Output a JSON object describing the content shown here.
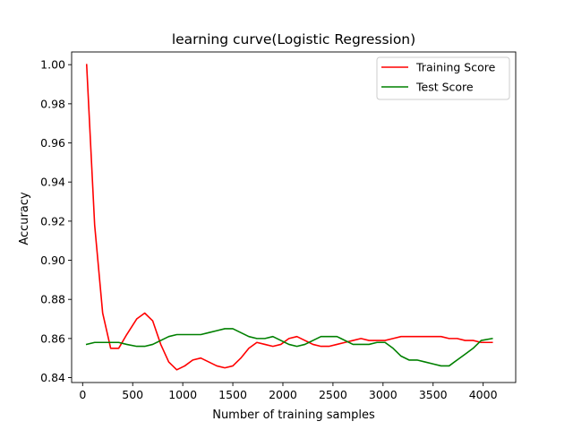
{
  "chart_data": {
    "type": "line",
    "title": "learning curve(Logistic Regression)",
    "xlabel": "Number of training samples",
    "ylabel": "Accuracy",
    "xlim": [
      -110,
      4325
    ],
    "ylim": [
      0.8375,
      1.0065
    ],
    "xticks": [
      0,
      500,
      1000,
      1500,
      2000,
      2500,
      3000,
      3500,
      4000
    ],
    "xtick_labels": [
      "0",
      "500",
      "1000",
      "1500",
      "2000",
      "2500",
      "3000",
      "3500",
      "4000"
    ],
    "yticks": [
      0.84,
      0.86,
      0.88,
      0.9,
      0.92,
      0.94,
      0.96,
      0.98,
      1.0
    ],
    "ytick_labels": [
      "0.84",
      "0.86",
      "0.88",
      "0.90",
      "0.92",
      "0.94",
      "0.96",
      "0.98",
      "1.00"
    ],
    "grid": false,
    "legend_position": "top-right",
    "x": [
      40,
      120,
      200,
      280,
      360,
      440,
      540,
      620,
      700,
      780,
      860,
      940,
      1020,
      1100,
      1180,
      1260,
      1340,
      1420,
      1500,
      1580,
      1660,
      1740,
      1820,
      1900,
      1980,
      2060,
      2140,
      2220,
      2300,
      2380,
      2460,
      2540,
      2620,
      2700,
      2780,
      2860,
      2940,
      3020,
      3100,
      3180,
      3260,
      3340,
      3420,
      3500,
      3580,
      3660,
      3740,
      3820,
      3900,
      3980,
      4090
    ],
    "series": [
      {
        "name": "Training Score",
        "color": "#ff0000",
        "values": [
          1.0,
          0.918,
          0.873,
          0.855,
          0.855,
          0.862,
          0.87,
          0.873,
          0.869,
          0.857,
          0.848,
          0.844,
          0.846,
          0.849,
          0.85,
          0.848,
          0.846,
          0.845,
          0.846,
          0.85,
          0.855,
          0.858,
          0.857,
          0.856,
          0.857,
          0.86,
          0.861,
          0.859,
          0.857,
          0.856,
          0.856,
          0.857,
          0.858,
          0.859,
          0.86,
          0.859,
          0.859,
          0.859,
          0.86,
          0.861,
          0.861,
          0.861,
          0.861,
          0.861,
          0.861,
          0.86,
          0.86,
          0.859,
          0.859,
          0.858,
          0.858
        ]
      },
      {
        "name": "Test Score",
        "color": "#008000",
        "values": [
          0.857,
          0.858,
          0.858,
          0.858,
          0.858,
          0.857,
          0.856,
          0.856,
          0.857,
          0.859,
          0.861,
          0.862,
          0.862,
          0.862,
          0.862,
          0.863,
          0.864,
          0.865,
          0.865,
          0.863,
          0.861,
          0.86,
          0.86,
          0.861,
          0.859,
          0.857,
          0.856,
          0.857,
          0.859,
          0.861,
          0.861,
          0.861,
          0.859,
          0.857,
          0.857,
          0.857,
          0.858,
          0.858,
          0.855,
          0.851,
          0.849,
          0.849,
          0.848,
          0.847,
          0.846,
          0.846,
          0.849,
          0.852,
          0.855,
          0.859,
          0.86
        ]
      }
    ]
  }
}
